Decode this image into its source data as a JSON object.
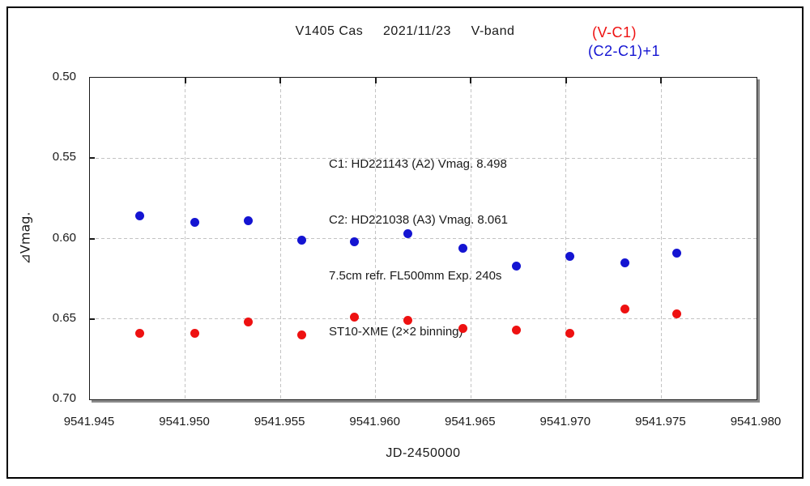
{
  "chart": {
    "title": "V1405 Cas     2021/11/23     V-band",
    "legend": [
      {
        "label": "(V-C1)",
        "color": "#ee1111"
      },
      {
        "label": "(C2-C1)+1",
        "color": "#1414d2"
      }
    ],
    "annotation_lines": [
      "C1: HD221143 (A2) Vmag. 8.498",
      "C2: HD221038 (A3) Vmag. 8.061",
      "7.5cm refr. FL500mm Exp. 240s",
      "ST10-XME (2×2 binning)"
    ],
    "y_axis_label": "⊿Vmag.",
    "x_axis_label": "JD-2450000"
  },
  "chart_data": {
    "type": "scatter",
    "title": "V1405 Cas 2021/11/23 V-band",
    "xlabel": "JD-2450000",
    "ylabel": "⊿Vmag.",
    "xlim": [
      9541.945,
      9541.98
    ],
    "ylim": [
      0.5,
      0.7
    ],
    "y_inverted": true,
    "grid": "dashed, interior gridlines only",
    "legend_position": "top-right",
    "x_ticks": [
      "9541.945",
      "9541.950",
      "9541.955",
      "9541.960",
      "9541.965",
      "9541.970",
      "9541.975",
      "9541.980"
    ],
    "y_ticks": [
      "0.50",
      "0.55",
      "0.60",
      "0.65",
      "0.70"
    ],
    "x": [
      9541.9476,
      9541.9505,
      9541.9533,
      9541.9561,
      9541.9589,
      9541.9617,
      9541.9646,
      9541.9674,
      9541.9702,
      9541.9731,
      9541.9758
    ],
    "series": [
      {
        "name": "(V-C1)",
        "color": "#ee1111",
        "values": [
          0.659,
          0.659,
          0.652,
          0.66,
          0.649,
          0.651,
          0.656,
          0.657,
          0.659,
          0.644,
          0.647
        ]
      },
      {
        "name": "(C2-C1)+1",
        "color": "#1414d2",
        "values": [
          0.586,
          0.59,
          0.589,
          0.601,
          0.602,
          0.597,
          0.606,
          0.617,
          0.611,
          0.615,
          0.609
        ]
      }
    ]
  }
}
